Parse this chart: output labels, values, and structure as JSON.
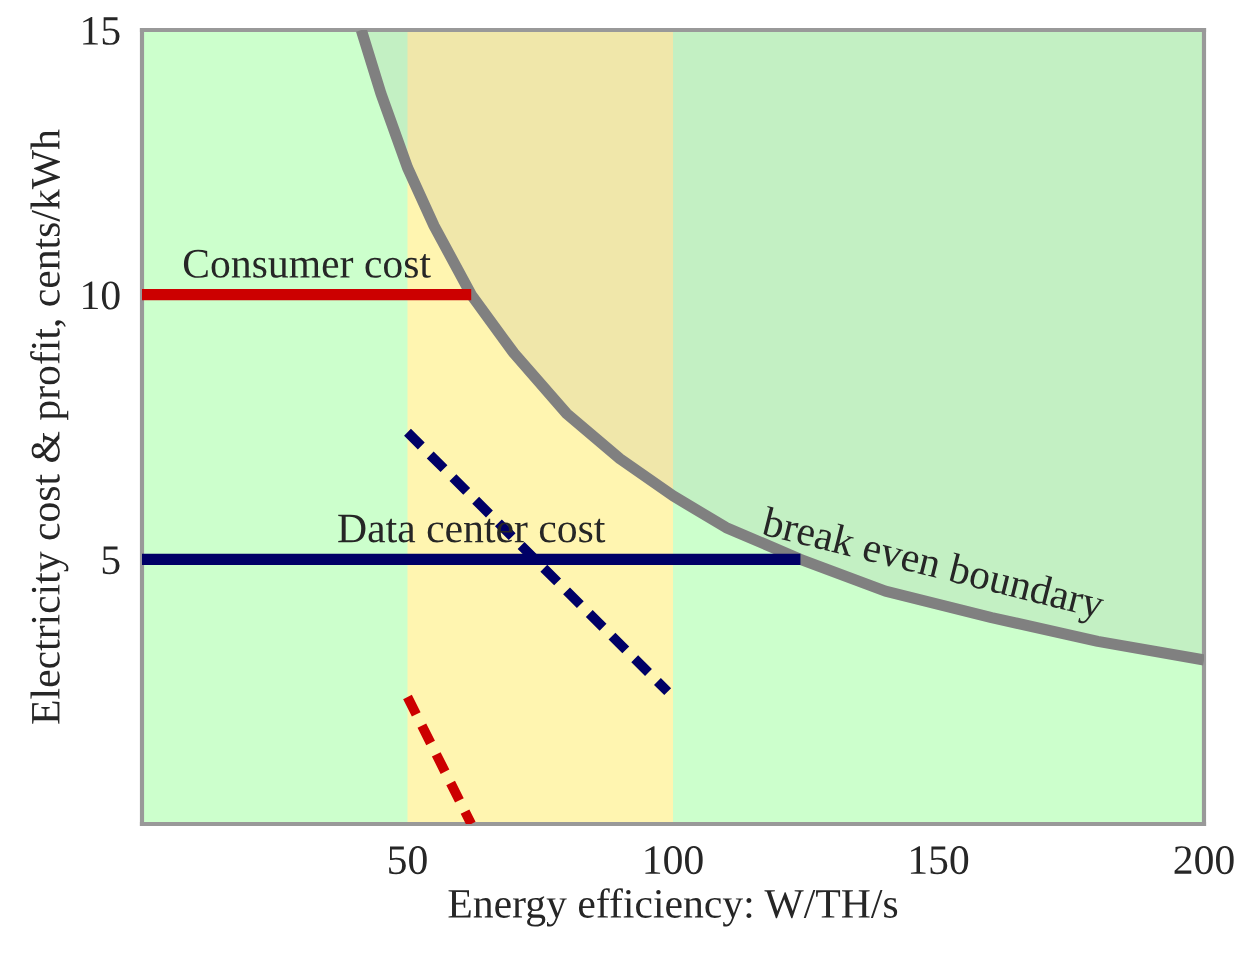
{
  "chart_data": {
    "type": "line",
    "xlabel": "Energy efficiency: W/TH/s",
    "ylabel": "Electricity cost & profit, cents/kWh",
    "xlim": [
      0,
      200
    ],
    "ylim": [
      0,
      15
    ],
    "xticks": [
      50,
      100,
      150,
      200
    ],
    "yticks": [
      5,
      10,
      15
    ],
    "grid": false,
    "legend": false,
    "marker": "none",
    "bands": [
      {
        "axis": "x",
        "from": 0,
        "to": 200,
        "color": "#ccffcc"
      },
      {
        "axis": "x",
        "from": 50,
        "to": 100,
        "color": "#fff5b0"
      }
    ],
    "series": [
      {
        "color": "#808080",
        "x": [
          41.3,
          45,
          50,
          55,
          62,
          70,
          80,
          90,
          100,
          110,
          124,
          140,
          160,
          180,
          200
        ],
        "values": [
          15,
          13.8,
          12.4,
          11.3,
          10,
          8.9,
          7.75,
          6.9,
          6.2,
          5.6,
          5,
          4.4,
          3.9,
          3.45,
          3.1
        ],
        "upper": [
          15,
          15,
          15,
          15,
          15,
          15,
          15,
          15,
          15,
          15,
          15,
          15,
          15,
          15,
          15
        ],
        "lower": [
          15,
          13.8,
          12.4,
          11.3,
          10,
          8.9,
          7.75,
          6.9,
          6.2,
          5.6,
          5,
          4.4,
          3.9,
          3.45,
          3.1
        ]
      },
      {
        "name": "Consumer cost",
        "color": "#cc0000",
        "x": [
          0,
          62
        ],
        "values": [
          10,
          10
        ]
      },
      {
        "name": "Data center cost",
        "color": "#000066",
        "x": [
          0,
          124
        ],
        "values": [
          5,
          5
        ]
      },
      {
        "color": "#000066",
        "x": [
          50,
          99
        ],
        "values": [
          7.4,
          2.5
        ],
        "line_style": "dashed"
      },
      {
        "color": "#cc0000",
        "x": [
          50,
          62
        ],
        "values": [
          2.4,
          0
        ],
        "line_style": "dashed"
      }
    ],
    "annotations": [
      {
        "text": "break even boundary",
        "x": 148,
        "y": 4.2
      }
    ]
  }
}
